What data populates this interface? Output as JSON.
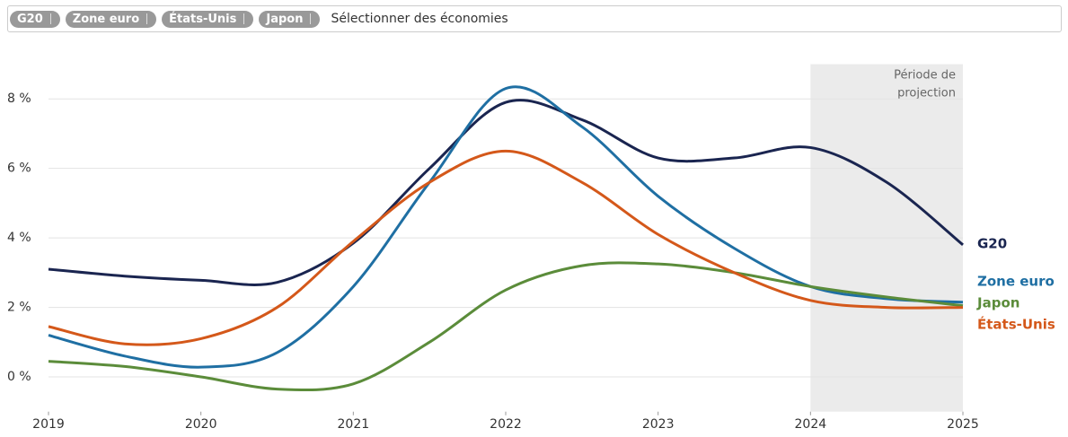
{
  "filters": {
    "chips": [
      "G20",
      "Zone euro",
      "États-Unis",
      "Japon"
    ],
    "placeholder": "Sélectionner des économies"
  },
  "chart_data": {
    "type": "line",
    "x": [
      2019,
      2019.5,
      2020,
      2020.5,
      2021,
      2021.5,
      2022,
      2022.5,
      2023,
      2023.5,
      2024,
      2024.5,
      2025
    ],
    "series": [
      {
        "name": "G20",
        "color": "#1a2550",
        "values": [
          3.1,
          2.9,
          2.78,
          2.72,
          3.85,
          6.0,
          7.9,
          7.4,
          6.3,
          6.3,
          6.6,
          5.6,
          3.8
        ]
      },
      {
        "name": "Zone euro",
        "color": "#1f6fa3",
        "values": [
          1.2,
          0.6,
          0.28,
          0.7,
          2.6,
          5.6,
          8.3,
          7.2,
          5.2,
          3.7,
          2.6,
          2.25,
          2.15
        ]
      },
      {
        "name": "Japon",
        "color": "#5b8c3a",
        "values": [
          0.45,
          0.3,
          0.0,
          -0.35,
          -0.2,
          1.0,
          2.5,
          3.2,
          3.25,
          3.0,
          2.6,
          2.3,
          2.05
        ]
      },
      {
        "name": "États-Unis",
        "color": "#d4581a",
        "values": [
          1.45,
          0.95,
          1.1,
          2.0,
          3.9,
          5.6,
          6.5,
          5.6,
          4.1,
          3.0,
          2.2,
          2.0,
          2.0
        ]
      }
    ],
    "xlim": [
      2019,
      2025
    ],
    "xticks": [
      2019,
      2020,
      2021,
      2022,
      2023,
      2024,
      2025
    ],
    "ylim": [
      -1,
      9
    ],
    "yticks": [
      {
        "value": 0,
        "label": "0 %"
      },
      {
        "value": 2,
        "label": "2 %"
      },
      {
        "value": 4,
        "label": "4 %"
      },
      {
        "value": 6,
        "label": "6 %"
      },
      {
        "value": 8,
        "label": "8 %"
      }
    ],
    "grid": true,
    "shade": {
      "from": 2024,
      "to": 2025,
      "label": [
        "Période de",
        "projection"
      ]
    }
  }
}
